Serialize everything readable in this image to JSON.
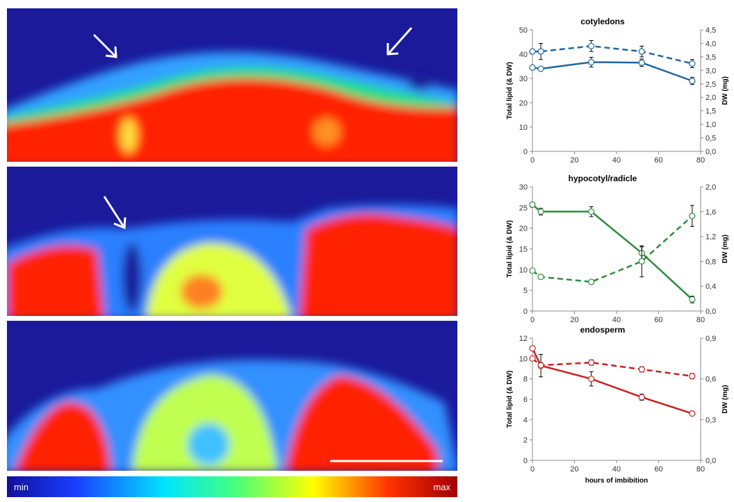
{
  "colorbar": {
    "min_label": "min",
    "max_label": "max"
  },
  "chart_data": [
    {
      "type": "line",
      "title": "cotyledons",
      "y_label": "Total lipid (& DW)",
      "y2_label": "DW (mg)",
      "x": [
        0,
        4,
        28,
        52,
        76
      ],
      "xlim": [
        0,
        80
      ],
      "xticks": [
        0,
        20,
        40,
        60,
        80
      ],
      "ylim": [
        0,
        50
      ],
      "yticks": [
        0,
        10,
        20,
        30,
        40,
        50
      ],
      "y2lim": [
        0,
        4.5
      ],
      "y2ticks": [
        {
          "value": 0,
          "label": "0,0"
        },
        {
          "value": 0.5,
          "label": "0,5"
        },
        {
          "value": 1,
          "label": "1,0"
        },
        {
          "value": 1.5,
          "label": "1,5"
        },
        {
          "value": 2,
          "label": "2,0"
        },
        {
          "value": 2.5,
          "label": "2,5"
        },
        {
          "value": 3,
          "label": "3,0"
        },
        {
          "value": 3.5,
          "label": "3,5"
        },
        {
          "value": 4,
          "label": "4,0"
        },
        {
          "value": 4.5,
          "label": "4,5"
        }
      ],
      "series": [
        {
          "color": "#1f65a0",
          "line_style": "solid",
          "values": [
            34.5,
            34,
            36.7,
            36.5,
            29
          ],
          "errors": [
            0,
            0.5,
            2,
            1.5,
            1.5
          ]
        },
        {
          "color": "#1f65a0",
          "line_style": "dashed",
          "axis": "y2",
          "values": [
            3.7,
            3.7,
            3.9,
            3.7,
            3.25
          ],
          "errors": [
            0,
            0.3,
            0.2,
            0.2,
            0.15
          ]
        }
      ]
    },
    {
      "type": "line",
      "title": "hypocotyl/radicle",
      "y_label": "Total lipid (& DW)",
      "y2_label": "DW (mg)",
      "x": [
        0,
        4,
        28,
        52,
        76
      ],
      "xlim": [
        0,
        80
      ],
      "xticks": [
        0,
        20,
        40,
        60,
        80
      ],
      "ylim": [
        0,
        30
      ],
      "yticks": [
        0,
        5,
        10,
        15,
        20,
        25,
        30
      ],
      "y2lim": [
        0,
        2
      ],
      "y2ticks": [
        {
          "value": 0,
          "label": "0,0"
        },
        {
          "value": 0.4,
          "label": "0,4"
        },
        {
          "value": 0.8,
          "label": "0,8"
        },
        {
          "value": 1.2,
          "label": "1,2"
        },
        {
          "value": 1.6,
          "label": "1,6"
        },
        {
          "value": 2,
          "label": "2,0"
        }
      ],
      "series": [
        {
          "color": "#2e8b3e",
          "line_style": "solid",
          "values": [
            25.7,
            24,
            24,
            14,
            2.8
          ],
          "errors": [
            0,
            0.8,
            1.2,
            1.5,
            0.8
          ]
        },
        {
          "color": "#2e8b3e",
          "line_style": "dashed",
          "axis": "y2",
          "values": [
            0.65,
            0.55,
            0.47,
            0.8,
            1.53
          ],
          "errors": [
            0,
            0.03,
            0.02,
            0.25,
            0.17
          ]
        }
      ]
    },
    {
      "type": "line",
      "title": "endosperm",
      "y_label": "Total lipid (& DW)",
      "y2_label": "DW (mg)",
      "x_label": "hours of imbibition",
      "x": [
        0,
        4,
        28,
        52,
        76
      ],
      "xlim": [
        0,
        80
      ],
      "xticks": [
        0,
        20,
        40,
        60,
        80
      ],
      "ylim": [
        0,
        12
      ],
      "yticks": [
        0,
        2,
        4,
        6,
        8,
        10,
        12
      ],
      "y2lim": [
        0,
        0.9
      ],
      "y2ticks": [
        {
          "value": 0,
          "label": "0,0"
        },
        {
          "value": 0.3,
          "label": "0,3"
        },
        {
          "value": 0.6,
          "label": "0,6"
        },
        {
          "value": 0.9,
          "label": "0,9"
        }
      ],
      "series": [
        {
          "color": "#c8201e",
          "line_style": "solid",
          "values": [
            11,
            9.3,
            8,
            6.2,
            4.6
          ],
          "errors": [
            0,
            1.1,
            0.7,
            0.3,
            0.2
          ]
        },
        {
          "color": "#c8201e",
          "line_style": "dashed",
          "axis": "y2",
          "values": [
            0.75,
            0.7,
            0.72,
            0.67,
            0.62
          ],
          "errors": [
            0,
            0.02,
            0.02,
            0.02,
            0.02
          ]
        }
      ]
    }
  ]
}
